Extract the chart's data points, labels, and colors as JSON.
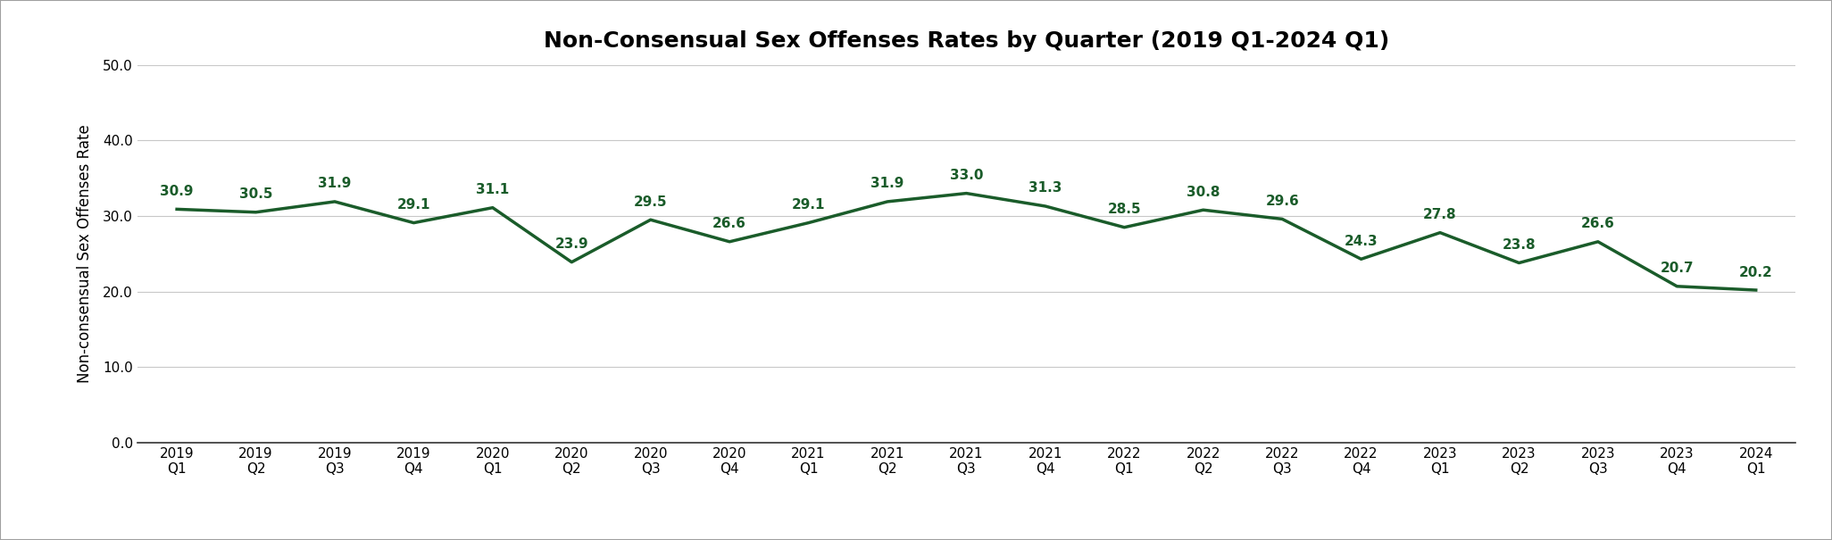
{
  "title": "Non-Consensual Sex Offenses Rates by Quarter (2019 Q1-2024 Q1)",
  "ylabel": "Non-consensual Sex Offenses Rate",
  "x_labels": [
    "2019\nQ1",
    "2019\nQ2",
    "2019\nQ3",
    "2019\nQ4",
    "2020\nQ1",
    "2020\nQ2",
    "2020\nQ3",
    "2020\nQ4",
    "2021\nQ1",
    "2021\nQ2",
    "2021\nQ3",
    "2021\nQ4",
    "2022\nQ1",
    "2022\nQ2",
    "2022\nQ3",
    "2022\nQ4",
    "2023\nQ1",
    "2023\nQ2",
    "2023\nQ3",
    "2023\nQ4",
    "2024\nQ1"
  ],
  "values": [
    30.9,
    30.5,
    31.9,
    29.1,
    31.1,
    23.9,
    29.5,
    26.6,
    29.1,
    31.9,
    33.0,
    31.3,
    28.5,
    30.8,
    29.6,
    24.3,
    27.8,
    23.8,
    26.6,
    20.7,
    20.2
  ],
  "line_color": "#1a5c2a",
  "label_color": "#1a5c2a",
  "ylim": [
    0.0,
    50.0
  ],
  "yticks": [
    0.0,
    10.0,
    20.0,
    30.0,
    40.0,
    50.0
  ],
  "background_color": "#ffffff",
  "grid_color": "#c8c8c8",
  "border_color": "#a0a0a0",
  "title_fontsize": 18,
  "ylabel_fontsize": 12,
  "tick_fontsize": 11,
  "annotation_fontsize": 11,
  "line_width": 2.5
}
